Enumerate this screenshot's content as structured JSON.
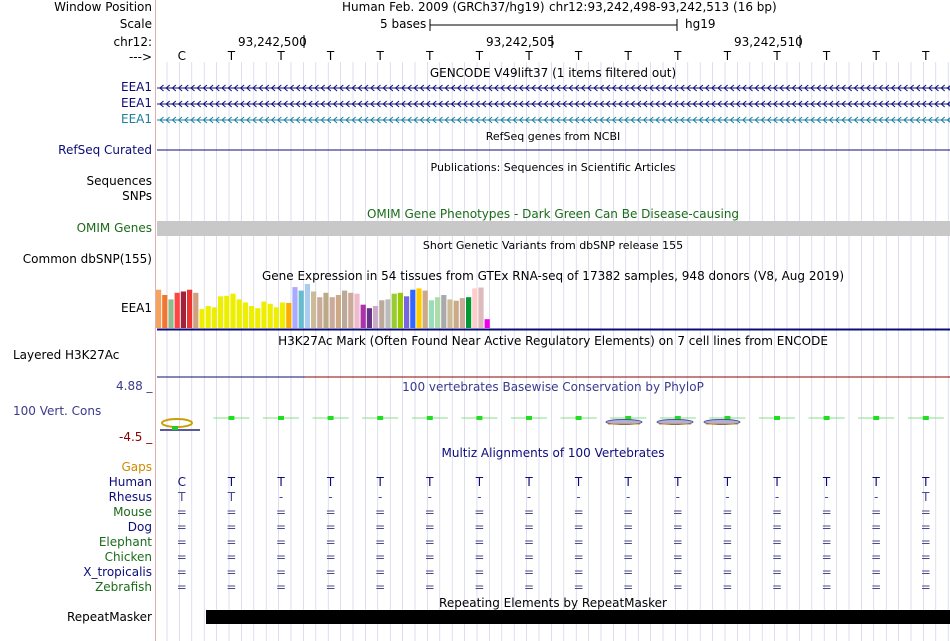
{
  "header": {
    "window_position_label": "Window Position",
    "scale_label": "Scale",
    "chrom_label": "chr12:",
    "strand_label": "--->",
    "assembly": "Human Feb. 2009 (GRCh37/hg19)",
    "position": "chr12:93,242,498-93,242,513 (16 bp)",
    "scale_text": "5 bases",
    "db": "hg19",
    "coords": [
      "93,242,500",
      "93,242,505",
      "93,242,510"
    ]
  },
  "sequence": [
    "C",
    "T",
    "T",
    "T",
    "T",
    "T",
    "T",
    "T",
    "T",
    "T",
    "T",
    "T",
    "T",
    "T",
    "T",
    "T"
  ],
  "tracks": {
    "gencode": {
      "title": "GENCODE V49lift37 (1 items filtered out)",
      "items": [
        "EEA1",
        "EEA1",
        "EEA1"
      ],
      "colors": [
        "#0c0c78",
        "#0c0c78",
        "#1a7fa0"
      ]
    },
    "refseq": {
      "title": "RefSeq genes from NCBI",
      "label": "RefSeq Curated",
      "color": "#0c0c78"
    },
    "publications": {
      "title": "Publications: Sequences in Scientific Articles",
      "labels": [
        "Sequences",
        "SNPs"
      ]
    },
    "omim": {
      "title": "OMIM Gene Phenotypes - Dark Green Can Be Disease-causing",
      "label": "OMIM Genes",
      "color": "#1a6b1a"
    },
    "dbsnp": {
      "title": "Short Genetic Variants from dbSNP release 155",
      "label": "Common dbSNP(155)"
    },
    "gtex": {
      "title": "Gene Expression in 54 tissues from GTEx RNA-seq of 17382 samples, 948 donors (V8, Aug 2019)",
      "label": "EEA1",
      "bars": [
        {
          "c": "#f4a460",
          "v": 0.87
        },
        {
          "c": "#ee7733",
          "v": 0.75
        },
        {
          "c": "#8fbc8f",
          "v": 0.65
        },
        {
          "c": "#ff4444",
          "v": 0.8
        },
        {
          "c": "#a0233a",
          "v": 0.83
        },
        {
          "c": "#ee3333",
          "v": 0.87
        },
        {
          "c": "#d0a080",
          "v": 0.8
        },
        {
          "c": "#eeee00",
          "v": 0.43
        },
        {
          "c": "#eeee00",
          "v": 0.5
        },
        {
          "c": "#eeee00",
          "v": 0.47
        },
        {
          "c": "#eeee00",
          "v": 0.72
        },
        {
          "c": "#eeee00",
          "v": 0.73
        },
        {
          "c": "#eeee00",
          "v": 0.78
        },
        {
          "c": "#eeee00",
          "v": 0.65
        },
        {
          "c": "#eeee00",
          "v": 0.58
        },
        {
          "c": "#eeee00",
          "v": 0.5
        },
        {
          "c": "#eeee00",
          "v": 0.45
        },
        {
          "c": "#eeee00",
          "v": 0.6
        },
        {
          "c": "#eeee00",
          "v": 0.55
        },
        {
          "c": "#eeee00",
          "v": 0.47
        },
        {
          "c": "#eeee00",
          "v": 0.58
        },
        {
          "c": "#ffaa00",
          "v": 0.57
        },
        {
          "c": "#aaaaff",
          "v": 0.93
        },
        {
          "c": "#66bbcc",
          "v": 0.85
        },
        {
          "c": "#aaccee",
          "v": 1.0
        },
        {
          "c": "#ccbb99",
          "v": 0.83
        },
        {
          "c": "#ccaa99",
          "v": 0.7
        },
        {
          "c": "#bbaa88",
          "v": 0.8
        },
        {
          "c": "#ccaa99",
          "v": 0.7
        },
        {
          "c": "#ccaa88",
          "v": 0.75
        },
        {
          "c": "#bbaa99",
          "v": 0.85
        },
        {
          "c": "#ccaa99",
          "v": 0.8
        },
        {
          "c": "#eebbcc",
          "v": 0.78
        },
        {
          "c": "#aa33aa",
          "v": 0.53
        },
        {
          "c": "#663388",
          "v": 0.45
        },
        {
          "c": "#ccaacc",
          "v": 0.5
        },
        {
          "c": "#bbaa99",
          "v": 0.63
        },
        {
          "c": "#bbbbbb",
          "v": 0.65
        },
        {
          "c": "#99cc33",
          "v": 0.78
        },
        {
          "c": "#99cc00",
          "v": 0.8
        },
        {
          "c": "#7766dd",
          "v": 0.72
        },
        {
          "c": "#3366ff",
          "v": 0.87
        },
        {
          "c": "#ffcc00",
          "v": 0.9
        },
        {
          "c": "#ccaa88",
          "v": 0.85
        },
        {
          "c": "#99ddbb",
          "v": 0.63
        },
        {
          "c": "#aaddaa",
          "v": 0.7
        },
        {
          "c": "#aaaaaa",
          "v": 0.75
        },
        {
          "c": "#ccbb99",
          "v": 0.65
        },
        {
          "c": "#ccaa88",
          "v": 0.62
        },
        {
          "c": "#ccaa99",
          "v": 0.68
        },
        {
          "c": "#009933",
          "v": 0.7
        },
        {
          "c": "#ffcccc",
          "v": 0.9
        },
        {
          "c": "#ddbbbb",
          "v": 0.92
        },
        {
          "c": "#ee00ee",
          "v": 0.2
        }
      ]
    },
    "h3k27ac": {
      "title": "H3K27Ac Mark (Often Found Near Active Regulatory Elements) on 7 cell lines from ENCODE",
      "label": "Layered H3K27Ac"
    },
    "phylop": {
      "title": "100 vertebrates Basewise Conservation by PhyloP",
      "label": "100 Vert. Cons",
      "max": "4.88 _",
      "min": "-4.5 _",
      "color": "#3a3a8c"
    },
    "multiz": {
      "title": "Multiz Alignments of 100 Vertebrates",
      "gaps_label": "Gaps",
      "species": [
        {
          "name": "Human",
          "color": "#0c0c78",
          "row": [
            "C",
            "T",
            "T",
            "T",
            "T",
            "T",
            "T",
            "T",
            "T",
            "T",
            "T",
            "T",
            "T",
            "T",
            "T",
            "T"
          ]
        },
        {
          "name": "Rhesus",
          "color": "#0c0c78",
          "row": [
            "T",
            "T",
            "-",
            "-",
            "-",
            "-",
            "-",
            "-",
            "-",
            "-",
            "-",
            "-",
            "-",
            "-",
            "-",
            "T"
          ]
        },
        {
          "name": "Mouse",
          "color": "#1a6b1a",
          "row": [
            "=",
            "=",
            "=",
            "=",
            "=",
            "=",
            "=",
            "=",
            "=",
            "=",
            "=",
            "=",
            "=",
            "=",
            "=",
            "="
          ]
        },
        {
          "name": "Dog",
          "color": "#0c0c78",
          "row": [
            "=",
            "=",
            "=",
            "=",
            "=",
            "=",
            "=",
            "=",
            "=",
            "=",
            "=",
            "=",
            "=",
            "=",
            "=",
            "="
          ]
        },
        {
          "name": "Elephant",
          "color": "#1a6b1a",
          "row": [
            "=",
            "=",
            "=",
            "=",
            "=",
            "=",
            "=",
            "=",
            "=",
            "=",
            "=",
            "=",
            "=",
            "=",
            "=",
            "="
          ]
        },
        {
          "name": "Chicken",
          "color": "#1a6b1a",
          "row": [
            "=",
            "=",
            "=",
            "=",
            "=",
            "=",
            "=",
            "=",
            "=",
            "=",
            "=",
            "=",
            "=",
            "=",
            "=",
            "="
          ]
        },
        {
          "name": "X_tropicalis",
          "color": "#0c0c78",
          "row": [
            "=",
            "=",
            "=",
            "=",
            "=",
            "=",
            "=",
            "=",
            "=",
            "=",
            "=",
            "=",
            "=",
            "=",
            "=",
            "="
          ]
        },
        {
          "name": "Zebrafish",
          "color": "#1a6b1a",
          "row": [
            "=",
            "=",
            "=",
            "=",
            "=",
            "=",
            "=",
            "=",
            "=",
            "=",
            "=",
            "=",
            "=",
            "=",
            "=",
            "="
          ]
        }
      ]
    },
    "repeatmasker": {
      "title": "Repeating Elements by RepeatMasker",
      "label": "RepeatMasker"
    }
  },
  "colors": {
    "gaps": "#d08a00",
    "grid": "#c8c8e6",
    "h3k27ac_line": "#8b0000"
  }
}
